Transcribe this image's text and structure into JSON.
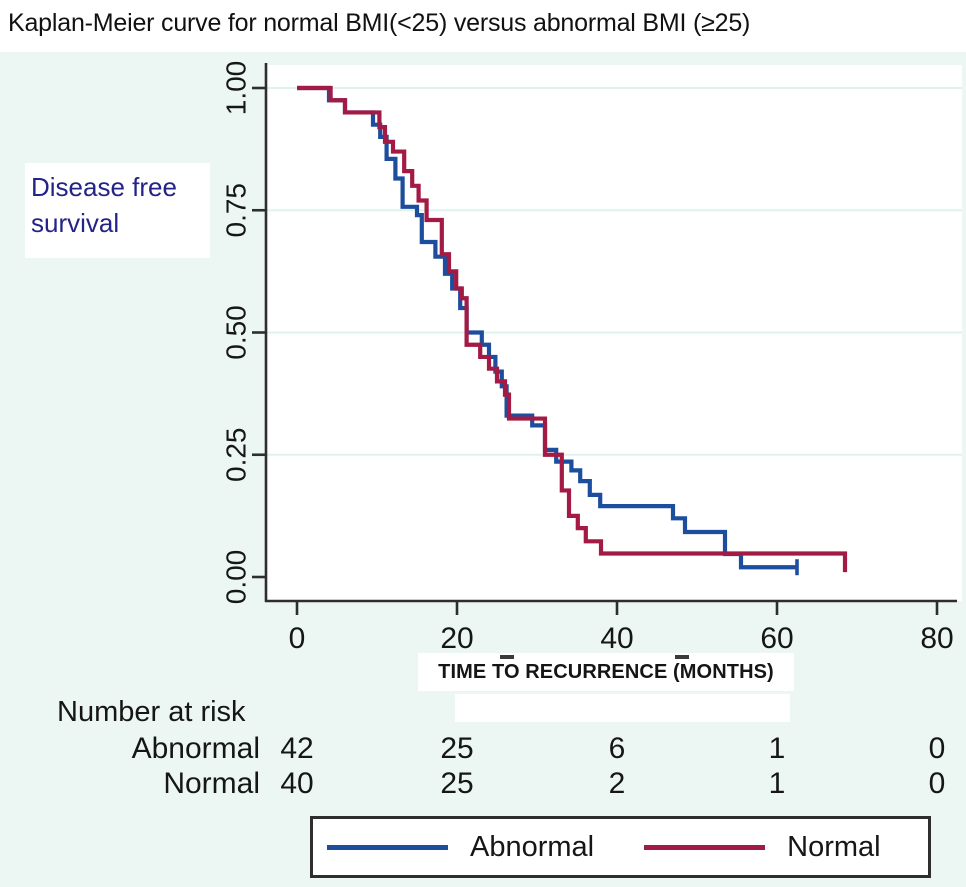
{
  "title": {
    "text": "Kaplan-Meier curve for normal BMI(<25) versus abnormal BMI (≥25)"
  },
  "y_axis_label": {
    "line1": "Disease free",
    "line2": "survival"
  },
  "chart_data": {
    "type": "line",
    "subtype": "kaplan-meier-step",
    "title": "Kaplan-Meier curve for normal BMI(<25) versus abnormal BMI (≥25)",
    "xlabel": "TIME TO RECURRENCE (MONTHS)",
    "ylabel": "Disease free survival",
    "xlim": [
      0,
      80
    ],
    "ylim": [
      0.0,
      1.0
    ],
    "x_ticks": [
      0,
      20,
      40,
      60,
      80
    ],
    "y_ticks": [
      "0.00",
      "0.25",
      "0.50",
      "0.75",
      "1.00"
    ],
    "grid": "faint horizontal gridlines at each y tick",
    "legend_position": "bottom",
    "series": [
      {
        "name": "Abnormal",
        "color": "#1d4e9e",
        "points": [
          [
            0,
            1.0
          ],
          [
            4,
            0.975
          ],
          [
            6,
            0.95
          ],
          [
            9.5,
            0.925
          ],
          [
            10.4,
            0.9
          ],
          [
            11.2,
            0.855
          ],
          [
            12.3,
            0.815
          ],
          [
            13.2,
            0.757
          ],
          [
            15.0,
            0.74
          ],
          [
            15.6,
            0.685
          ],
          [
            17.3,
            0.655
          ],
          [
            18.5,
            0.62
          ],
          [
            19.4,
            0.59
          ],
          [
            20.4,
            0.55
          ],
          [
            21.2,
            0.5
          ],
          [
            23.1,
            0.475
          ],
          [
            24.0,
            0.45
          ],
          [
            24.8,
            0.42
          ],
          [
            25.6,
            0.39
          ],
          [
            26.2,
            0.33
          ],
          [
            29.4,
            0.31
          ],
          [
            31.0,
            0.26
          ],
          [
            32.4,
            0.236
          ],
          [
            34.3,
            0.218
          ],
          [
            35.4,
            0.196
          ],
          [
            36.6,
            0.168
          ],
          [
            37.9,
            0.145
          ],
          [
            47.0,
            0.12
          ],
          [
            48.5,
            0.092
          ],
          [
            53.5,
            0.047
          ],
          [
            55.5,
            0.02
          ],
          [
            62.5,
            0.02
          ]
        ],
        "censor_marks": [
          [
            62.5,
            0.02
          ]
        ]
      },
      {
        "name": "Normal",
        "color": "#a31a44",
        "points": [
          [
            0,
            1.0
          ],
          [
            4.2,
            0.975
          ],
          [
            6.0,
            0.95
          ],
          [
            10.3,
            0.92
          ],
          [
            11.0,
            0.89
          ],
          [
            12.0,
            0.87
          ],
          [
            13.4,
            0.83
          ],
          [
            14.4,
            0.8
          ],
          [
            15.2,
            0.77
          ],
          [
            16.2,
            0.73
          ],
          [
            18.1,
            0.66
          ],
          [
            19.0,
            0.625
          ],
          [
            19.9,
            0.59
          ],
          [
            20.6,
            0.57
          ],
          [
            21.2,
            0.475
          ],
          [
            22.9,
            0.45
          ],
          [
            24.0,
            0.426
          ],
          [
            25.0,
            0.4
          ],
          [
            26.0,
            0.373
          ],
          [
            26.5,
            0.324
          ],
          [
            31.0,
            0.25
          ],
          [
            33.1,
            0.177
          ],
          [
            34.0,
            0.125
          ],
          [
            35.1,
            0.1
          ],
          [
            36.1,
            0.073
          ],
          [
            38.0,
            0.048
          ],
          [
            68.5,
            0.01
          ]
        ],
        "censor_marks": []
      }
    ]
  },
  "risk_table": {
    "heading": "Number at risk",
    "time_points": [
      0,
      20,
      40,
      60,
      80
    ],
    "rows": [
      {
        "label": "Abnormal",
        "values": [
          "42",
          "25",
          "6",
          "1",
          "0"
        ]
      },
      {
        "label": "Normal",
        "values": [
          "40",
          "25",
          "2",
          "1",
          "0"
        ]
      }
    ]
  },
  "legend": {
    "items": [
      {
        "label": "Abnormal",
        "color": "#1d4e9e"
      },
      {
        "label": "Normal",
        "color": "#a31a44"
      }
    ]
  },
  "colors": {
    "abnormal": "#1d4e9e",
    "normal": "#a31a44",
    "axis": "#2e2e2e",
    "grid": "#dff3ee",
    "plot_bg": "#ffffff",
    "page_bg": "#ecf7f4",
    "ylabel_text": "#232388",
    "text": "#161616"
  }
}
